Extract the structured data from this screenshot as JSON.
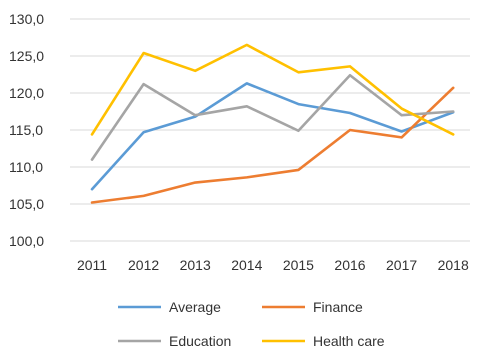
{
  "chart_data": {
    "type": "line",
    "title": "",
    "xlabel": "",
    "ylabel": "",
    "categories": [
      "2011",
      "2012",
      "2013",
      "2014",
      "2015",
      "2016",
      "2017",
      "2018"
    ],
    "y_tick_labels": [
      "100,0",
      "105,0",
      "110,0",
      "115,0",
      "120,0",
      "125,0",
      "130,0"
    ],
    "y_ticks": [
      100,
      105,
      110,
      115,
      120,
      125,
      130
    ],
    "ylim": [
      100,
      130
    ],
    "grid": "horizontal",
    "legend_position": "bottom",
    "series": [
      {
        "name": "Average",
        "color": "#5b9bd5",
        "values": [
          107.0,
          114.7,
          116.8,
          121.3,
          118.5,
          117.3,
          114.8,
          117.4
        ]
      },
      {
        "name": "Finance",
        "color": "#ed7d31",
        "values": [
          105.2,
          106.1,
          107.9,
          108.6,
          109.6,
          115.0,
          114.0,
          120.7
        ]
      },
      {
        "name": "Education",
        "color": "#a5a5a5",
        "values": [
          111.0,
          121.2,
          117.0,
          118.2,
          114.9,
          122.4,
          117.0,
          117.5
        ]
      },
      {
        "name": "Health care",
        "color": "#ffc000",
        "values": [
          114.4,
          125.4,
          123.0,
          126.5,
          122.8,
          123.6,
          117.9,
          114.4
        ]
      }
    ]
  }
}
